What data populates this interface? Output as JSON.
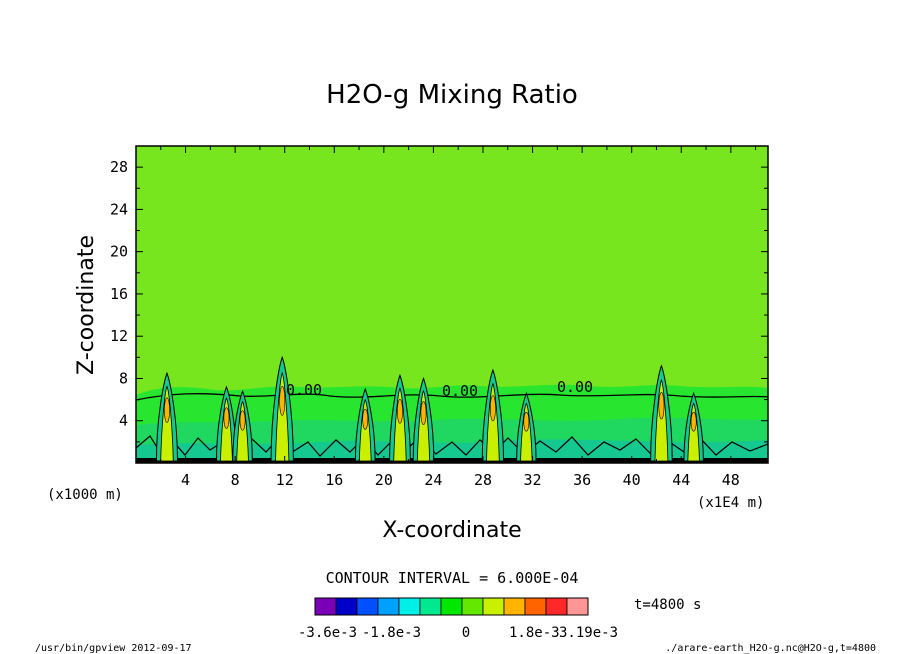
{
  "chart_data": {
    "type": "contour",
    "title": "H2O-g Mixing Ratio",
    "xlabel": "X-coordinate",
    "ylabel": "Z-coordinate",
    "x_unit_left": "(x1000 m)",
    "x_unit_right": "(x1E4 m)",
    "xlim": [
      0,
      51
    ],
    "ylim": [
      0,
      30
    ],
    "xticks": [
      4,
      8,
      12,
      16,
      20,
      24,
      28,
      32,
      36,
      40,
      44,
      48
    ],
    "yticks": [
      4,
      8,
      12,
      16,
      20,
      24,
      28
    ],
    "contour_interval_text": "CONTOUR INTERVAL = 6.000E-04",
    "time_label": "t=4800 s",
    "contour_labels": [
      "0.00",
      "0.00",
      "0.00"
    ],
    "colorbar": {
      "colors": [
        "#7a00b8",
        "#0000c8",
        "#0050ff",
        "#00a0ff",
        "#00f0e8",
        "#00e890",
        "#00e800",
        "#64e800",
        "#c8f000",
        "#ffb400",
        "#ff6400",
        "#ff2828",
        "#ff9696"
      ],
      "labels": [
        "-3.6e-3",
        "-1.8e-3",
        "0",
        "1.8e-3",
        "3.19e-3"
      ]
    },
    "background_color": "#78e61e",
    "peaks": [
      {
        "x": 2.5,
        "z": 8.5
      },
      {
        "x": 7.3,
        "z": 7.2
      },
      {
        "x": 8.6,
        "z": 6.8
      },
      {
        "x": 11.8,
        "z": 10.0
      },
      {
        "x": 18.5,
        "z": 7.0
      },
      {
        "x": 21.3,
        "z": 8.3
      },
      {
        "x": 23.2,
        "z": 8.0
      },
      {
        "x": 28.8,
        "z": 8.8
      },
      {
        "x": 31.5,
        "z": 6.6
      },
      {
        "x": 42.4,
        "z": 9.2
      },
      {
        "x": 45.0,
        "z": 6.6
      }
    ]
  },
  "footer": {
    "left": "/usr/bin/gpview  2012-09-17",
    "right": "./arare-earth_H2O-g.nc@H2O-g,t=4800"
  }
}
